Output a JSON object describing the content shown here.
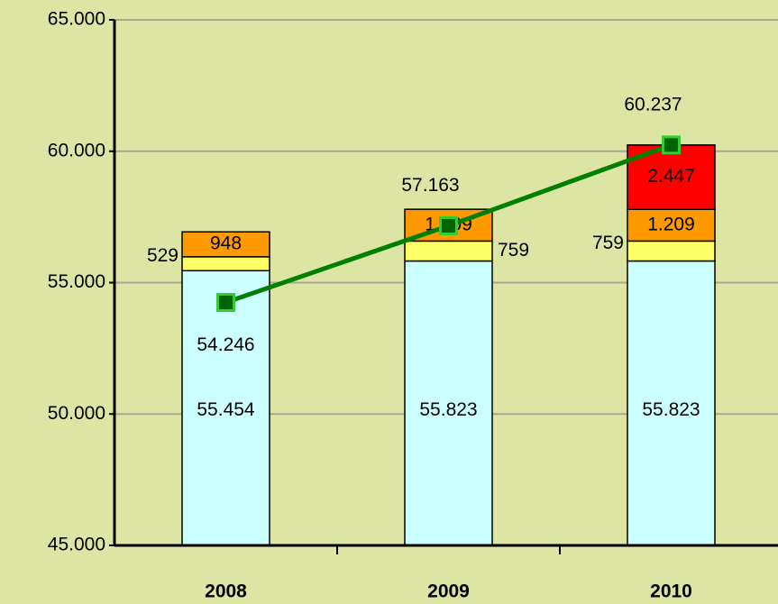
{
  "chart_data": {
    "type": "bar",
    "categories": [
      "2008",
      "2009",
      "2010"
    ],
    "ylim": [
      45000,
      65000
    ],
    "yticks": [
      {
        "value": 45000,
        "label": "45.000"
      },
      {
        "value": 50000,
        "label": "50.000"
      },
      {
        "value": 55000,
        "label": "55.000"
      },
      {
        "value": 60000,
        "label": "60.000"
      },
      {
        "value": 65000,
        "label": "65.000"
      }
    ],
    "grid": true,
    "series": [
      {
        "color": "#ccffff",
        "values": [
          55454,
          55823,
          55823
        ],
        "value_labels": [
          "55.454",
          "55.823",
          "55.823"
        ]
      },
      {
        "color": "#ffff66",
        "values": [
          529,
          759,
          759
        ]
      },
      {
        "color": "#ff9900",
        "values": [
          948,
          1209,
          1209
        ],
        "value_labels": [
          "948",
          "1.209",
          "1.209"
        ]
      },
      {
        "color": "#ff0000",
        "values": [
          null,
          null,
          2447
        ],
        "value_labels": [
          null,
          null,
          "2.447"
        ]
      },
      {
        "type": "line",
        "color": "#008000",
        "values": [
          54246,
          57163,
          60237
        ],
        "value_labels": [
          "54.246",
          "57.163",
          "60.237"
        ]
      }
    ]
  }
}
